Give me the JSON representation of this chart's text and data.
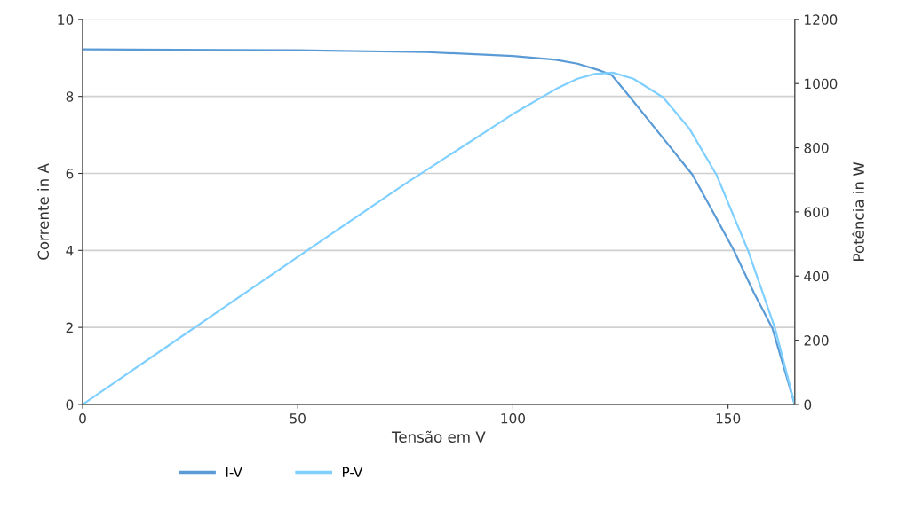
{
  "chart_data": {
    "type": "line",
    "xlabel": "Tensão em V",
    "ylabel": "Corrente in A",
    "y2label": "Potência in W",
    "xlim": [
      0,
      165.5
    ],
    "xticks": [
      0,
      50,
      100,
      150
    ],
    "ylim": [
      0,
      10
    ],
    "yticks": [
      0,
      2,
      4,
      6,
      8,
      10
    ],
    "y2lim": [
      0,
      1200
    ],
    "y2ticks": [
      0,
      200,
      400,
      600,
      800,
      1000,
      1200
    ],
    "grid": "y",
    "legend": "bottom",
    "marker": "none",
    "line_style": "solid",
    "series": [
      {
        "name": "I-V",
        "color": "#5b9bd5",
        "x": [
          0,
          50,
          80,
          100,
          110,
          115,
          120,
          123,
          127.3,
          135,
          141.7,
          146,
          151.4,
          156,
          160.3,
          165.5
        ],
        "values": [
          9.22,
          9.2,
          9.15,
          9.05,
          8.95,
          8.85,
          8.68,
          8.55,
          7.97,
          6.9,
          5.97,
          5.1,
          3.99,
          2.9,
          1.98,
          0
        ]
      },
      {
        "name": "P-V",
        "color": "#7fcfff",
        "axis": "y2",
        "x": [
          0,
          25,
          50,
          75,
          100,
          110,
          115,
          119,
          123.2,
          128,
          134.9,
          141,
          147.3,
          154.7,
          160.9,
          165.5
        ],
        "values": [
          0,
          230,
          460,
          688,
          905,
          983,
          1015,
          1030,
          1034,
          1015,
          957,
          860,
          716,
          478,
          238,
          0
        ]
      }
    ]
  }
}
